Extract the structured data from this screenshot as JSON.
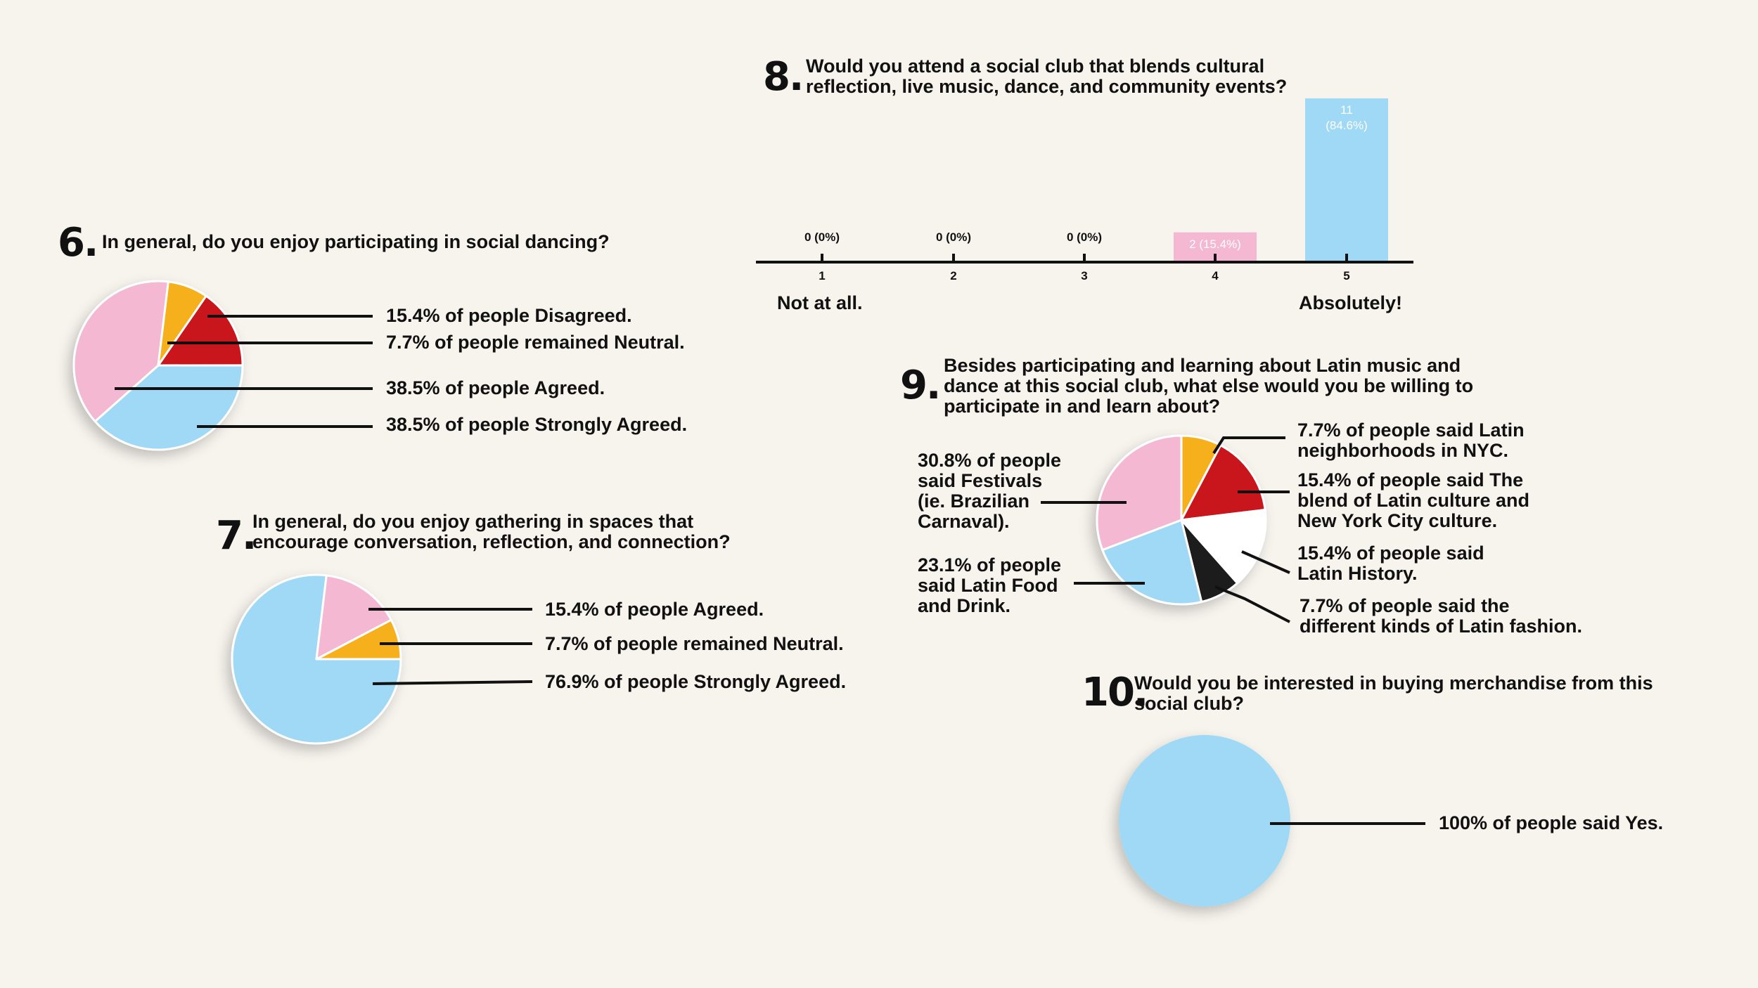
{
  "colors": {
    "pink": "#f5b8d3",
    "yellow": "#f5b01a",
    "red": "#c8151d",
    "blue": "#9fd9f5",
    "black": "#1a1a1a",
    "white": "#ffffff",
    "background": "#f7f4ee"
  },
  "q6": {
    "number": "6.",
    "question": "In general, do you enjoy participating in social dancing?",
    "labels": [
      "15.4% of people Disagreed.",
      "7.7% of people remained Neutral.",
      "38.5% of people Agreed.",
      "38.5% of people Strongly Agreed."
    ]
  },
  "q7": {
    "number": "7.",
    "question": "In general, do you enjoy gathering in spaces that\nencourage conversation, reflection, and connection?",
    "labels": [
      "15.4% of people Agreed.",
      "7.7% of people remained Neutral.",
      "76.9% of people Strongly Agreed."
    ]
  },
  "q8": {
    "number": "8.",
    "question": "Would you attend a social club that blends cultural\nreflection, live music, dance, and community events?",
    "low_label": "Not at all.",
    "high_label": "Absolutely!"
  },
  "q9": {
    "number": "9.",
    "question": "Besides participating and learning about Latin music and\ndance at this social club, what else would you be willing to\nparticipate in and learn about?",
    "labels": [
      "7.7% of people said Latin\nneighborhoods in NYC.",
      "15.4% of people said The\nblend of Latin culture and\nNew York City culture.",
      "15.4% of people said\nLatin History.",
      "7.7% of people said the\ndifferent kinds of Latin fashion.",
      "23.1% of people\nsaid Latin Food\nand Drink.",
      "30.8% of people\nsaid Festivals\n(ie. Brazilian\nCarnaval)."
    ]
  },
  "q10": {
    "number": "10.",
    "question": "Would you be interested in buying merchandise from this\nsocial club?",
    "labels": [
      "100% of people said Yes."
    ]
  },
  "chart_data": [
    {
      "type": "pie",
      "id": "q6",
      "slices": [
        {
          "label": "Disagreed",
          "value": 15.4,
          "color": "#c8151d"
        },
        {
          "label": "Strongly Agreed",
          "value": 38.5,
          "color": "#9fd9f5"
        },
        {
          "label": "Agreed",
          "value": 38.5,
          "color": "#f5b8d3"
        },
        {
          "label": "Neutral",
          "value": 7.7,
          "color": "#f5b01a"
        }
      ]
    },
    {
      "type": "pie",
      "id": "q7",
      "slices": [
        {
          "label": "Neutral",
          "value": 7.7,
          "color": "#f5b01a"
        },
        {
          "label": "Strongly Agreed",
          "value": 76.9,
          "color": "#9fd9f5"
        },
        {
          "label": "Agreed",
          "value": 15.4,
          "color": "#f5b8d3"
        }
      ]
    },
    {
      "type": "bar",
      "id": "q8",
      "categories": [
        "1",
        "2",
        "3",
        "4",
        "5"
      ],
      "values": [
        0,
        0,
        0,
        2,
        11
      ],
      "data_labels": [
        "0 (0%)",
        "0 (0%)",
        "0 (0%)",
        "2 (15.4%)",
        "11\n(84.6%)"
      ],
      "colors": [
        "#f5b8d3",
        "#f5b8d3",
        "#f5b8d3",
        "#f5b8d3",
        "#9fd9f5"
      ],
      "ylim": [
        0,
        11
      ]
    },
    {
      "type": "pie",
      "id": "q9",
      "slices": [
        {
          "label": "Latin neighborhoods in NYC",
          "value": 7.7,
          "color": "#f5b01a"
        },
        {
          "label": "The blend of Latin culture and New York City culture",
          "value": 15.4,
          "color": "#c8151d"
        },
        {
          "label": "Latin History",
          "value": 15.4,
          "color": "#ffffff"
        },
        {
          "label": "Different kinds of Latin fashion",
          "value": 7.7,
          "color": "#1a1a1a"
        },
        {
          "label": "Latin Food and Drink",
          "value": 23.1,
          "color": "#9fd9f5"
        },
        {
          "label": "Festivals (ie. Brazilian Carnaval)",
          "value": 30.8,
          "color": "#f5b8d3"
        }
      ]
    },
    {
      "type": "pie",
      "id": "q10",
      "slices": [
        {
          "label": "Yes",
          "value": 100,
          "color": "#9fd9f5"
        }
      ]
    }
  ]
}
